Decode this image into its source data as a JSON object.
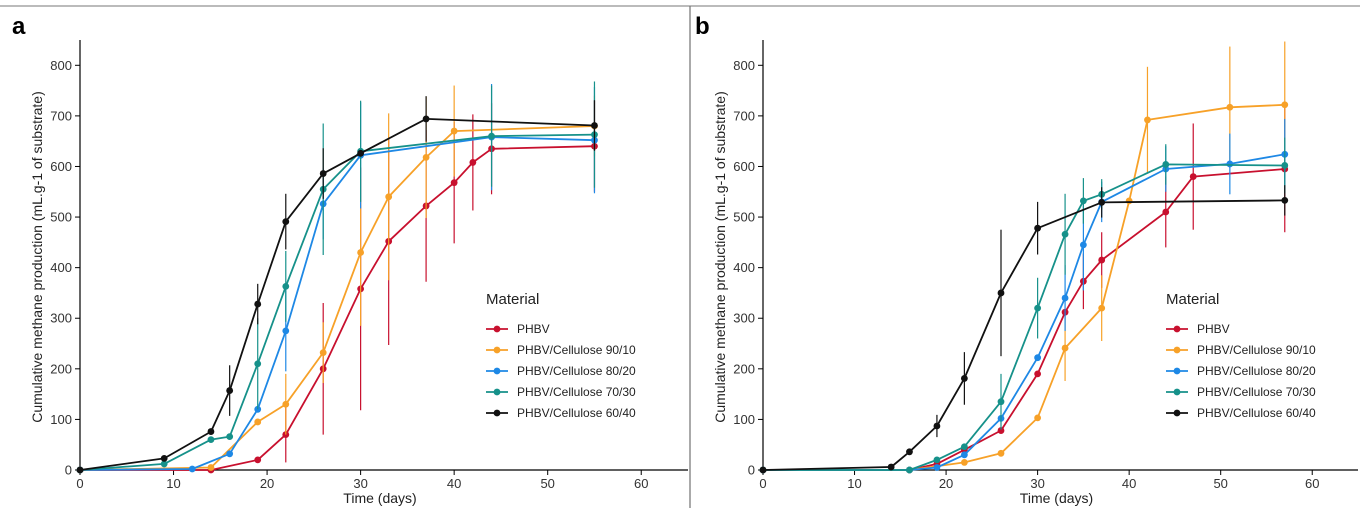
{
  "colors": {
    "PHBV": "#c8102e",
    "PHBV/Cellulose 90/10": "#f7a128",
    "PHBV/Cellulose 80/20": "#1e88e5",
    "PHBV/Cellulose 70/30": "#16918a",
    "PHBV/Cellulose 60/40": "#111111"
  },
  "chart_data": [
    {
      "panel": "a",
      "type": "line",
      "xlabel": "Time (days)",
      "ylabel": "Cumulative methane production (mL.g-1 of substrate)",
      "xlim": [
        0,
        65
      ],
      "ylim": [
        0,
        850
      ],
      "xticks": [
        0,
        10,
        20,
        30,
        40,
        50,
        60
      ],
      "yticks": [
        0,
        100,
        200,
        300,
        400,
        500,
        600,
        700,
        800
      ],
      "legend_title": "Material",
      "legend_position": "right",
      "grid": false,
      "series": [
        {
          "name": "PHBV",
          "points": [
            {
              "x": 0,
              "y": 0,
              "err": 0
            },
            {
              "x": 14,
              "y": 0,
              "err": 0
            },
            {
              "x": 19,
              "y": 20,
              "err": 0
            },
            {
              "x": 22,
              "y": 70,
              "err": 55
            },
            {
              "x": 26,
              "y": 200,
              "err": 130
            },
            {
              "x": 30,
              "y": 358,
              "err": 240
            },
            {
              "x": 33,
              "y": 452,
              "err": 205
            },
            {
              "x": 37,
              "y": 522,
              "err": 150
            },
            {
              "x": 40,
              "y": 568,
              "err": 120
            },
            {
              "x": 42,
              "y": 608,
              "err": 95
            },
            {
              "x": 44,
              "y": 635,
              "err": 90
            },
            {
              "x": 55,
              "y": 640,
              "err": 90
            }
          ]
        },
        {
          "name": "PHBV/Cellulose 90/10",
          "points": [
            {
              "x": 0,
              "y": 0,
              "err": 0
            },
            {
              "x": 14,
              "y": 5,
              "err": 0
            },
            {
              "x": 19,
              "y": 95,
              "err": 0
            },
            {
              "x": 22,
              "y": 130,
              "err": 60
            },
            {
              "x": 26,
              "y": 232,
              "err": 60
            },
            {
              "x": 30,
              "y": 430,
              "err": 145
            },
            {
              "x": 33,
              "y": 540,
              "err": 165
            },
            {
              "x": 37,
              "y": 618,
              "err": 120
            },
            {
              "x": 40,
              "y": 670,
              "err": 90
            },
            {
              "x": 55,
              "y": 680,
              "err": 60
            }
          ]
        },
        {
          "name": "PHBV/Cellulose 80/20",
          "points": [
            {
              "x": 0,
              "y": 0,
              "err": 0
            },
            {
              "x": 12,
              "y": 2,
              "err": 0
            },
            {
              "x": 16,
              "y": 32,
              "err": 0
            },
            {
              "x": 19,
              "y": 120,
              "err": 0
            },
            {
              "x": 22,
              "y": 275,
              "err": 80
            },
            {
              "x": 26,
              "y": 526,
              "err": 70
            },
            {
              "x": 30,
              "y": 622,
              "err": 105
            },
            {
              "x": 44,
              "y": 658,
              "err": 105
            },
            {
              "x": 55,
              "y": 652,
              "err": 105
            }
          ]
        },
        {
          "name": "PHBV/Cellulose 70/30",
          "points": [
            {
              "x": 0,
              "y": 0,
              "err": 0
            },
            {
              "x": 9,
              "y": 12,
              "err": 0
            },
            {
              "x": 14,
              "y": 60,
              "err": 0
            },
            {
              "x": 16,
              "y": 66,
              "err": 0
            },
            {
              "x": 19,
              "y": 210,
              "err": 90
            },
            {
              "x": 22,
              "y": 363,
              "err": 70
            },
            {
              "x": 26,
              "y": 555,
              "err": 130
            },
            {
              "x": 30,
              "y": 630,
              "err": 100
            },
            {
              "x": 44,
              "y": 660,
              "err": 100
            },
            {
              "x": 55,
              "y": 663,
              "err": 105
            }
          ]
        },
        {
          "name": "PHBV/Cellulose 60/40",
          "points": [
            {
              "x": 0,
              "y": 0,
              "err": 0
            },
            {
              "x": 9,
              "y": 23,
              "err": 0
            },
            {
              "x": 14,
              "y": 76,
              "err": 0
            },
            {
              "x": 16,
              "y": 157,
              "err": 50
            },
            {
              "x": 19,
              "y": 328,
              "err": 40
            },
            {
              "x": 22,
              "y": 491,
              "err": 55
            },
            {
              "x": 26,
              "y": 586,
              "err": 50
            },
            {
              "x": 30,
              "y": 626,
              "err": 0
            },
            {
              "x": 37,
              "y": 694,
              "err": 45
            },
            {
              "x": 55,
              "y": 681,
              "err": 50
            }
          ]
        }
      ]
    },
    {
      "panel": "b",
      "type": "line",
      "xlabel": "Time (days)",
      "ylabel": "Cumulative methane production (mL.g-1 of substrate)",
      "xlim": [
        0,
        65
      ],
      "ylim": [
        0,
        850
      ],
      "xticks": [
        0,
        10,
        20,
        30,
        40,
        50,
        60
      ],
      "yticks": [
        0,
        100,
        200,
        300,
        400,
        500,
        600,
        700,
        800
      ],
      "legend_title": "Material",
      "legend_position": "right",
      "grid": false,
      "series": [
        {
          "name": "PHBV",
          "points": [
            {
              "x": 0,
              "y": 0,
              "err": 0
            },
            {
              "x": 16,
              "y": 0,
              "err": 0
            },
            {
              "x": 19,
              "y": 12,
              "err": 0
            },
            {
              "x": 22,
              "y": 40,
              "err": 0
            },
            {
              "x": 26,
              "y": 78,
              "err": 0
            },
            {
              "x": 30,
              "y": 190,
              "err": 0
            },
            {
              "x": 33,
              "y": 312,
              "err": 0
            },
            {
              "x": 35,
              "y": 373,
              "err": 55
            },
            {
              "x": 37,
              "y": 415,
              "err": 55
            },
            {
              "x": 44,
              "y": 510,
              "err": 70
            },
            {
              "x": 47,
              "y": 580,
              "err": 105
            },
            {
              "x": 57,
              "y": 595,
              "err": 125
            }
          ]
        },
        {
          "name": "PHBV/Cellulose 90/10",
          "points": [
            {
              "x": 0,
              "y": 0,
              "err": 0
            },
            {
              "x": 16,
              "y": 0,
              "err": 0
            },
            {
              "x": 22,
              "y": 15,
              "err": 0
            },
            {
              "x": 26,
              "y": 33,
              "err": 0
            },
            {
              "x": 30,
              "y": 103,
              "err": 0
            },
            {
              "x": 33,
              "y": 241,
              "err": 65
            },
            {
              "x": 37,
              "y": 320,
              "err": 65
            },
            {
              "x": 40,
              "y": 532,
              "err": 0
            },
            {
              "x": 42,
              "y": 692,
              "err": 105
            },
            {
              "x": 51,
              "y": 717,
              "err": 120
            },
            {
              "x": 57,
              "y": 722,
              "err": 125
            }
          ]
        },
        {
          "name": "PHBV/Cellulose 80/20",
          "points": [
            {
              "x": 0,
              "y": 0,
              "err": 0
            },
            {
              "x": 16,
              "y": 0,
              "err": 0
            },
            {
              "x": 19,
              "y": 5,
              "err": 0
            },
            {
              "x": 22,
              "y": 30,
              "err": 0
            },
            {
              "x": 26,
              "y": 102,
              "err": 0
            },
            {
              "x": 30,
              "y": 222,
              "err": 0
            },
            {
              "x": 33,
              "y": 340,
              "err": 65
            },
            {
              "x": 35,
              "y": 445,
              "err": 90
            },
            {
              "x": 37,
              "y": 530,
              "err": 40
            },
            {
              "x": 44,
              "y": 595,
              "err": 45
            },
            {
              "x": 51,
              "y": 605,
              "err": 60
            },
            {
              "x": 57,
              "y": 624,
              "err": 70
            }
          ]
        },
        {
          "name": "PHBV/Cellulose 70/30",
          "points": [
            {
              "x": 0,
              "y": 0,
              "err": 0
            },
            {
              "x": 16,
              "y": 0,
              "err": 0
            },
            {
              "x": 19,
              "y": 20,
              "err": 0
            },
            {
              "x": 22,
              "y": 46,
              "err": 0
            },
            {
              "x": 26,
              "y": 135,
              "err": 55
            },
            {
              "x": 30,
              "y": 320,
              "err": 60
            },
            {
              "x": 33,
              "y": 466,
              "err": 80
            },
            {
              "x": 35,
              "y": 532,
              "err": 45
            },
            {
              "x": 37,
              "y": 545,
              "err": 30
            },
            {
              "x": 44,
              "y": 604,
              "err": 40
            },
            {
              "x": 57,
              "y": 602,
              "err": 55
            }
          ]
        },
        {
          "name": "PHBV/Cellulose 60/40",
          "points": [
            {
              "x": 0,
              "y": 0,
              "err": 0
            },
            {
              "x": 14,
              "y": 6,
              "err": 0
            },
            {
              "x": 16,
              "y": 36,
              "err": 0
            },
            {
              "x": 19,
              "y": 87,
              "err": 22
            },
            {
              "x": 22,
              "y": 181,
              "err": 52
            },
            {
              "x": 26,
              "y": 350,
              "err": 125
            },
            {
              "x": 30,
              "y": 478,
              "err": 52
            },
            {
              "x": 37,
              "y": 529,
              "err": 30
            },
            {
              "x": 57,
              "y": 533,
              "err": 30
            }
          ]
        }
      ]
    }
  ]
}
